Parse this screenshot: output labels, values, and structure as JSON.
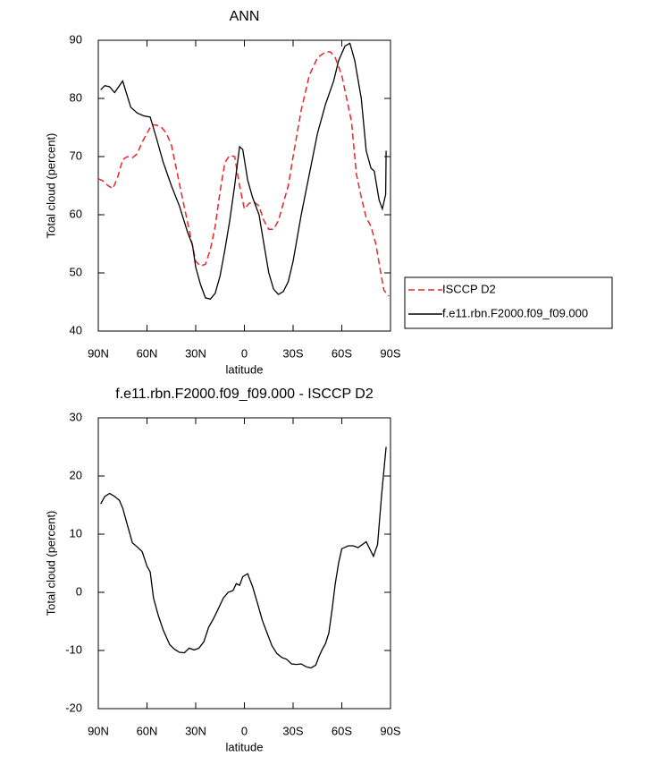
{
  "chart_data": [
    {
      "type": "line",
      "title": "ANN",
      "x_label": "latitude",
      "y_label": "Total cloud (percent)",
      "xlim": [
        90,
        -90
      ],
      "xticks": [
        {
          "value": 90,
          "label": "90N"
        },
        {
          "value": 60,
          "label": "60N"
        },
        {
          "value": 30,
          "label": "30N"
        },
        0,
        {
          "value": -30,
          "label": "30S"
        },
        {
          "value": -60,
          "label": "60S"
        },
        {
          "value": -90,
          "label": "90S"
        }
      ],
      "ylim": [
        40,
        90
      ],
      "yticks": [
        40,
        50,
        60,
        70,
        80,
        90
      ],
      "legend": "right",
      "series": [
        {
          "name": "ISCCP D2",
          "color": "#e8262a",
          "dash": true,
          "x": [
            90,
            87,
            84,
            81,
            78,
            75,
            72,
            69,
            66,
            63,
            60,
            57,
            54,
            51,
            48,
            45,
            42,
            39,
            36,
            33,
            30,
            27,
            24,
            21,
            18,
            15,
            12,
            9,
            6,
            3,
            0,
            -3,
            -6,
            -9,
            -12,
            -15,
            -18,
            -21,
            -24,
            -27,
            -30,
            -35,
            -40,
            -45,
            -50,
            -53,
            -56,
            -60,
            -63,
            -66,
            -69,
            -72,
            -75,
            -78,
            -81,
            -84,
            -86,
            -89
          ],
          "values": [
            66.2,
            65.8,
            65,
            64.5,
            66.5,
            69.5,
            70,
            69.8,
            70.5,
            72.5,
            74,
            75.5,
            75.4,
            75,
            74,
            72,
            68,
            64,
            60,
            56,
            52,
            51.2,
            51.5,
            54,
            58,
            64,
            69,
            70.2,
            70,
            65,
            61,
            62,
            62.2,
            61.5,
            59,
            57.5,
            57.5,
            59,
            62,
            65,
            70,
            78,
            84,
            87,
            88,
            88,
            87,
            84,
            80,
            76,
            67,
            63,
            59.5,
            58,
            55,
            50,
            47,
            46
          ]
        },
        {
          "name": "f.e11.rbn.F2000.f09_f09.000",
          "color": "#000000",
          "dash": false,
          "x": [
            88.5,
            86,
            83,
            80,
            75,
            70,
            66,
            62,
            58,
            54,
            50,
            45,
            40,
            35,
            32,
            30,
            27,
            24,
            21,
            18,
            15,
            12,
            9,
            6,
            3,
            1,
            -2,
            -5,
            -9,
            -12,
            -15,
            -18,
            -21,
            -24,
            -27,
            -30,
            -35,
            -40,
            -45,
            -50,
            -55,
            -58,
            -62,
            -65,
            -68,
            -72,
            -75,
            -78,
            -80,
            -83,
            -85,
            -87,
            -87.3
          ],
          "values": [
            81.5,
            82.2,
            82,
            81,
            83,
            78.5,
            77.5,
            77,
            76.8,
            73,
            69,
            65,
            61.5,
            57,
            54.8,
            51,
            48,
            45.7,
            45.5,
            46.5,
            49.5,
            54,
            59,
            65,
            71.7,
            71.2,
            66,
            63,
            60,
            55,
            50,
            47.2,
            46.3,
            46.8,
            48.5,
            52,
            60,
            67,
            74,
            79,
            83,
            86.5,
            89,
            89.5,
            86.5,
            80,
            71,
            68,
            67.5,
            62.5,
            61,
            63.5,
            71
          ]
        }
      ]
    },
    {
      "type": "line",
      "title": "f.e11.rbn.F2000.f09_f09.000 - ISCCP D2",
      "x_label": "latitude",
      "y_label": "Total cloud (percent)",
      "xlim": [
        90,
        -90
      ],
      "xticks": [
        {
          "value": 90,
          "label": "90N"
        },
        {
          "value": 60,
          "label": "60N"
        },
        {
          "value": 30,
          "label": "30N"
        },
        0,
        {
          "value": -30,
          "label": "30S"
        },
        {
          "value": -60,
          "label": "60S"
        },
        {
          "value": -90,
          "label": "90S"
        }
      ],
      "ylim": [
        -20,
        30
      ],
      "yticks": [
        -20,
        -10,
        0,
        10,
        20,
        30
      ],
      "series": [
        {
          "color": "#000000",
          "dash": false,
          "x": [
            88.5,
            86,
            83,
            80,
            77,
            75,
            72,
            69,
            66,
            63,
            60,
            58,
            56,
            53,
            50,
            46,
            43,
            40,
            37,
            34,
            31,
            28,
            25,
            22,
            19,
            16,
            13,
            10,
            7,
            5,
            3,
            1,
            -2,
            -5,
            -8,
            -11,
            -14,
            -17,
            -20,
            -23,
            -26,
            -29,
            -32,
            -35,
            -38,
            -41,
            -44,
            -46,
            -48,
            -50,
            -52,
            -54,
            -56,
            -58,
            -60,
            -64,
            -67,
            -70,
            -75,
            -79.5,
            -82,
            -84.6,
            -87.3
          ],
          "values": [
            15.2,
            16.5,
            17,
            16.5,
            15.8,
            14.5,
            11.5,
            8.5,
            7.8,
            7,
            4.5,
            3.5,
            -1,
            -4,
            -6.5,
            -9,
            -9.8,
            -10.3,
            -10.4,
            -9.6,
            -9.9,
            -9.6,
            -8.5,
            -6,
            -4.5,
            -2.8,
            -1,
            0,
            0.3,
            1.5,
            1.2,
            2.7,
            3.2,
            1,
            -1.8,
            -4.8,
            -7,
            -9.2,
            -10.5,
            -11.2,
            -11.5,
            -12.3,
            -12.4,
            -12.3,
            -12.8,
            -13,
            -12.5,
            -11,
            -9.8,
            -8.8,
            -7,
            -3,
            1.5,
            5,
            7.5,
            8,
            8,
            7.7,
            8.7,
            6.2,
            8.2,
            17,
            25
          ]
        }
      ]
    }
  ]
}
